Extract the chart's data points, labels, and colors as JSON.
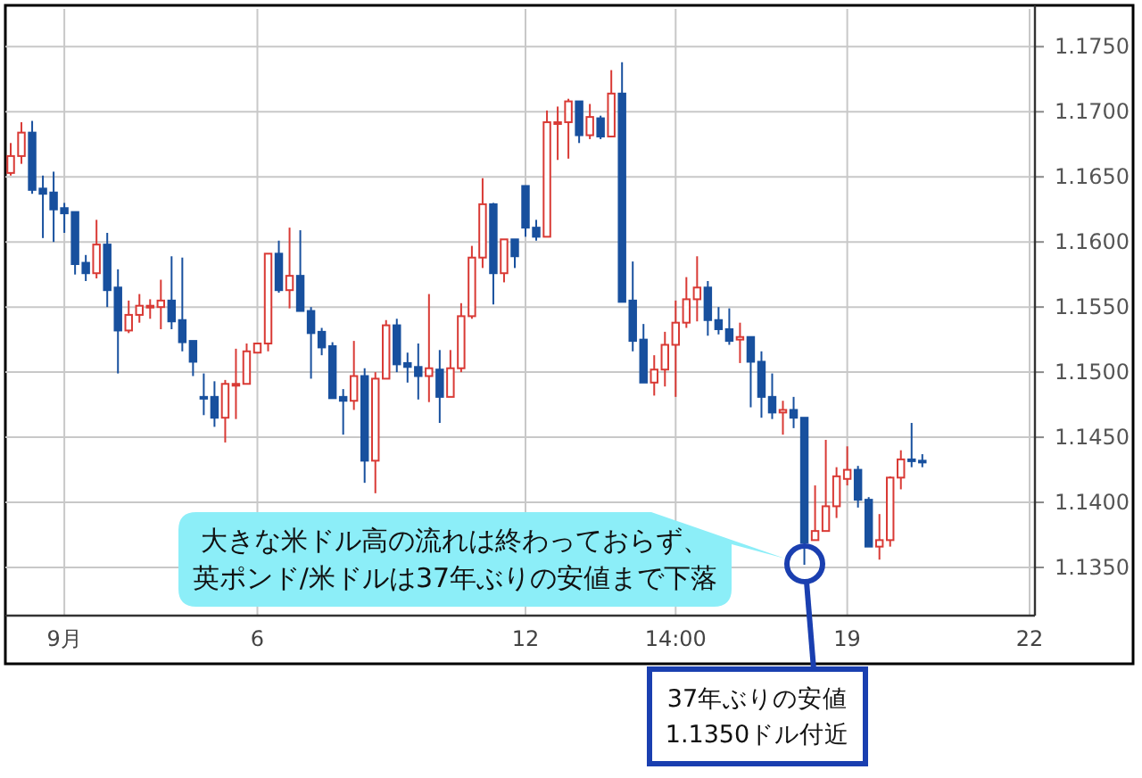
{
  "chart_data": {
    "type": "candlestick",
    "categories": [
      null,
      null,
      null,
      null,
      null,
      "9月",
      null,
      null,
      null,
      null,
      null,
      null,
      null,
      null,
      null,
      null,
      null,
      null,
      null,
      null,
      null,
      null,
      null,
      "6",
      null,
      null,
      null,
      null,
      null,
      null,
      null,
      null,
      null,
      null,
      null,
      null,
      null,
      null,
      null,
      null,
      null,
      null,
      null,
      null,
      null,
      null,
      null,
      null,
      "12",
      null,
      null,
      null,
      null,
      null,
      null,
      null,
      null,
      null,
      null,
      null,
      null,
      null,
      "14:00",
      null,
      null,
      null,
      null,
      null,
      null,
      null,
      null,
      null,
      null,
      null,
      null,
      null,
      null,
      null,
      "19",
      null,
      null,
      null,
      null,
      null,
      null,
      null,
      null,
      null,
      null,
      null,
      null,
      null,
      null,
      null,
      null,
      "22"
    ],
    "ohlc": [
      [
        1.1653,
        1.1676,
        1.1651,
        1.1666
      ],
      [
        1.1666,
        1.1692,
        1.166,
        1.1684
      ],
      [
        1.1684,
        1.1693,
        1.1637,
        1.164
      ],
      [
        1.1641,
        1.1651,
        1.1603,
        1.1637
      ],
      [
        1.1638,
        1.1654,
        1.16,
        1.1625
      ],
      [
        1.1626,
        1.163,
        1.1607,
        1.1622
      ],
      [
        1.1623,
        1.1623,
        1.1575,
        1.1583
      ],
      [
        1.1584,
        1.159,
        1.157,
        1.1576
      ],
      [
        1.1576,
        1.1617,
        1.1572,
        1.1598
      ],
      [
        1.1598,
        1.1607,
        1.155,
        1.1563
      ],
      [
        1.1565,
        1.1579,
        1.1499,
        1.1532
      ],
      [
        1.1532,
        1.1555,
        1.153,
        1.1544
      ],
      [
        1.1544,
        1.156,
        1.1538,
        1.1551
      ],
      [
        1.155,
        1.1556,
        1.1541,
        1.1551
      ],
      [
        1.155,
        1.1571,
        1.1533,
        1.1555
      ],
      [
        1.1555,
        1.1589,
        1.1533,
        1.1539
      ],
      [
        1.154,
        1.1588,
        1.1516,
        1.1523
      ],
      [
        1.1524,
        1.1524,
        1.1497,
        1.1508
      ],
      [
        1.1481,
        1.1499,
        1.1467,
        1.148
      ],
      [
        1.1481,
        1.1493,
        1.1458,
        1.1465
      ],
      [
        1.1465,
        1.1494,
        1.1446,
        1.1491
      ],
      [
        1.149,
        1.1518,
        1.1464,
        1.1491
      ],
      [
        1.1491,
        1.1522,
        1.1491,
        1.1516
      ],
      [
        1.1515,
        1.1522,
        1.1515,
        1.1522
      ],
      [
        1.1522,
        1.1591,
        1.1516,
        1.1591
      ],
      [
        1.1591,
        1.1601,
        1.1561,
        1.1563
      ],
      [
        1.1563,
        1.1611,
        1.1549,
        1.1574
      ],
      [
        1.1574,
        1.1609,
        1.1547,
        1.1547
      ],
      [
        1.1547,
        1.155,
        1.1495,
        1.153
      ],
      [
        1.1531,
        1.1534,
        1.1513,
        1.1519
      ],
      [
        1.152,
        1.1523,
        1.148,
        1.148
      ],
      [
        1.1481,
        1.1487,
        1.1452,
        1.1478
      ],
      [
        1.1478,
        1.1524,
        1.1471,
        1.1497
      ],
      [
        1.1497,
        1.1503,
        1.1415,
        1.1432
      ],
      [
        1.1432,
        1.15,
        1.1407,
        1.1495
      ],
      [
        1.1495,
        1.154,
        1.1495,
        1.1536
      ],
      [
        1.1536,
        1.1541,
        1.15,
        1.1506
      ],
      [
        1.1507,
        1.1515,
        1.1492,
        1.1504
      ],
      [
        1.1504,
        1.1522,
        1.1479,
        1.1497
      ],
      [
        1.1497,
        1.156,
        1.1477,
        1.1503
      ],
      [
        1.1502,
        1.1517,
        1.1461,
        1.1481
      ],
      [
        1.1481,
        1.1517,
        1.1481,
        1.1503
      ],
      [
        1.1503,
        1.1553,
        1.15,
        1.1543
      ],
      [
        1.1543,
        1.1597,
        1.1541,
        1.1588
      ],
      [
        1.1588,
        1.1649,
        1.158,
        1.1629
      ],
      [
        1.1629,
        1.163,
        1.1552,
        1.1576
      ],
      [
        1.1576,
        1.1602,
        1.1569,
        1.1602
      ],
      [
        1.1602,
        1.1602,
        1.158,
        1.1589
      ],
      [
        1.1643,
        1.1643,
        1.1604,
        1.1611
      ],
      [
        1.1611,
        1.1617,
        1.1601,
        1.1604
      ],
      [
        1.1604,
        1.1701,
        1.1604,
        1.1692
      ],
      [
        1.1691,
        1.1704,
        1.1663,
        1.1692
      ],
      [
        1.1692,
        1.171,
        1.1664,
        1.1708
      ],
      [
        1.1708,
        1.1708,
        1.1676,
        1.1682
      ],
      [
        1.1682,
        1.1706,
        1.1679,
        1.1696
      ],
      [
        1.1695,
        1.1697,
        1.1679,
        1.1681
      ],
      [
        1.1681,
        1.1732,
        1.1681,
        1.1714
      ],
      [
        1.1714,
        1.1738,
        1.1554,
        1.1554
      ],
      [
        1.1555,
        1.1585,
        1.1516,
        1.1524
      ],
      [
        1.1525,
        1.1537,
        1.1492,
        1.1492
      ],
      [
        1.1492,
        1.1513,
        1.1482,
        1.1502
      ],
      [
        1.1502,
        1.1531,
        1.1489,
        1.1521
      ],
      [
        1.1521,
        1.1555,
        1.1481,
        1.1538
      ],
      [
        1.1538,
        1.1573,
        1.1534,
        1.1556
      ],
      [
        1.1556,
        1.1589,
        1.1539,
        1.1565
      ],
      [
        1.1565,
        1.157,
        1.1528,
        1.154
      ],
      [
        1.154,
        1.155,
        1.1529,
        1.1533
      ],
      [
        1.1533,
        1.1549,
        1.1521,
        1.1524
      ],
      [
        1.1525,
        1.1538,
        1.1507,
        1.1527
      ],
      [
        1.1527,
        1.1527,
        1.1473,
        1.1508
      ],
      [
        1.1508,
        1.1516,
        1.1465,
        1.1481
      ],
      [
        1.1481,
        1.1499,
        1.1464,
        1.1469
      ],
      [
        1.1469,
        1.1478,
        1.1452,
        1.1471
      ],
      [
        1.1471,
        1.1481,
        1.1457,
        1.1465
      ],
      [
        1.1465,
        1.1465,
        1.1352,
        1.1369
      ],
      [
        1.1371,
        1.1413,
        1.1371,
        1.1378
      ],
      [
        1.1378,
        1.1448,
        1.1378,
        1.1397
      ],
      [
        1.1397,
        1.1427,
        1.1388,
        1.142
      ],
      [
        1.1418,
        1.1443,
        1.1413,
        1.1425
      ],
      [
        1.1425,
        1.1428,
        1.1396,
        1.1402
      ],
      [
        1.1402,
        1.1404,
        1.1366,
        1.1366
      ],
      [
        1.1366,
        1.1391,
        1.1356,
        1.1371
      ],
      [
        1.1371,
        1.142,
        1.1366,
        1.1419
      ],
      [
        1.1419,
        1.144,
        1.141,
        1.1433
      ],
      [
        1.1433,
        1.1461,
        1.1427,
        1.1432
      ],
      [
        1.1432,
        1.1437,
        1.1427,
        1.1431
      ],
      null,
      null,
      null,
      null,
      null,
      null,
      null,
      null,
      null,
      null
    ],
    "colors": [
      "#d93a35",
      "#d93a35",
      "#18509e",
      "#18509e",
      "#18509e",
      "#18509e",
      "#18509e",
      "#18509e",
      "#d93a35",
      "#18509e",
      "#18509e",
      "#d93a35",
      "#d93a35",
      "#d93a35",
      "#d93a35",
      "#18509e",
      "#18509e",
      "#18509e",
      "#18509e",
      "#18509e",
      "#d93a35",
      "#d93a35",
      "#d93a35",
      "#d93a35",
      "#d93a35",
      "#18509e",
      "#d93a35",
      "#18509e",
      "#18509e",
      "#18509e",
      "#18509e",
      "#18509e",
      "#d93a35",
      "#18509e",
      "#d93a35",
      "#d93a35",
      "#18509e",
      "#18509e",
      "#18509e",
      "#d93a35",
      "#18509e",
      "#d93a35",
      "#d93a35",
      "#d93a35",
      "#d93a35",
      "#18509e",
      "#d93a35",
      "#18509e",
      "#18509e",
      "#18509e",
      "#d93a35",
      "#d93a35",
      "#d93a35",
      "#18509e",
      "#d93a35",
      "#18509e",
      "#d93a35",
      "#18509e",
      "#18509e",
      "#18509e",
      "#d93a35",
      "#d93a35",
      "#d93a35",
      "#d93a35",
      "#d93a35",
      "#18509e",
      "#18509e",
      "#18509e",
      "#d93a35",
      "#18509e",
      "#18509e",
      "#18509e",
      "#d93a35",
      "#18509e",
      "#18509e",
      "#d93a35",
      "#d93a35",
      "#d93a35",
      "#d93a35",
      "#18509e",
      "#18509e",
      "#d93a35",
      "#d93a35",
      "#d93a35",
      "#18509e",
      "#18509e",
      null,
      null,
      null,
      null,
      null,
      null,
      null,
      null,
      null,
      null
    ],
    "ylim": [
      1.1313,
      1.1779
    ],
    "yticks": [
      {
        "value": 1.135,
        "label": "1.1350"
      },
      {
        "value": 1.14,
        "label": "1.1400"
      },
      {
        "value": 1.145,
        "label": "1.1450"
      },
      {
        "value": 1.15,
        "label": "1.1500"
      },
      {
        "value": 1.155,
        "label": "1.1550"
      },
      {
        "value": 1.16,
        "label": "1.1600"
      },
      {
        "value": 1.165,
        "label": "1.1650"
      },
      {
        "value": 1.17,
        "label": "1.1700"
      },
      {
        "value": 1.175,
        "label": "1.1750"
      }
    ],
    "grid": true,
    "annotations": [
      "大きな米ドル高の流れは終わっておらず、",
      "英ポンド/米ドルは37年ぶりの安値まで下落",
      "37年ぶりの安値",
      "1.1350ドル付近"
    ]
  }
}
